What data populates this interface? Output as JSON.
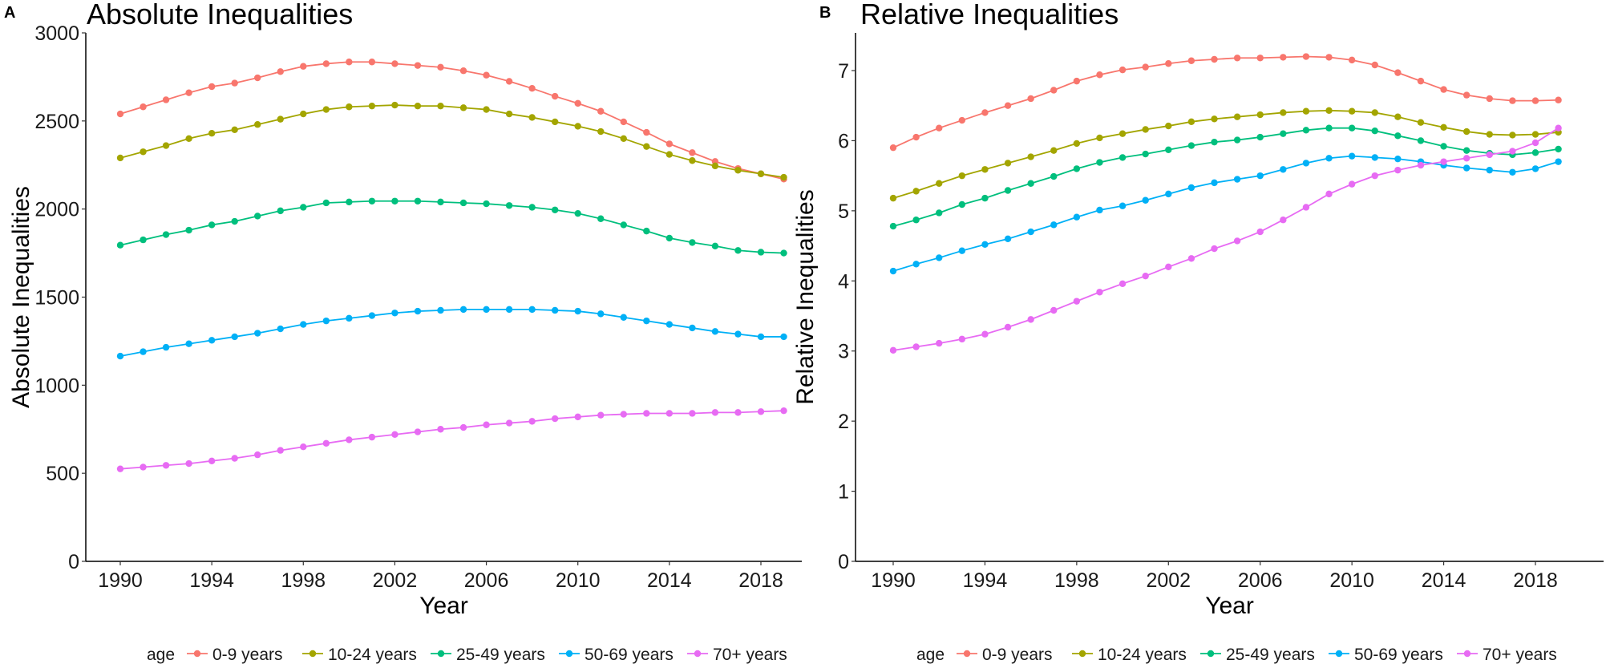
{
  "legend": {
    "title": "age",
    "labels": [
      "0-9 years",
      "10-24 years",
      "25-49 years",
      "50-69 years",
      "70+ years"
    ],
    "colors": [
      "#F8766D",
      "#A3A500",
      "#00BF7D",
      "#00B0F6",
      "#E76BF3"
    ],
    "position": "bottom"
  },
  "chart_data": [
    {
      "panel_label": "A",
      "type": "line",
      "title": "Absolute Inequalities",
      "xlabel": "Year",
      "ylabel": "Absolute Inequalities",
      "x": [
        1990,
        1991,
        1992,
        1993,
        1994,
        1995,
        1996,
        1997,
        1998,
        1999,
        2000,
        2001,
        2002,
        2003,
        2004,
        2005,
        2006,
        2007,
        2008,
        2009,
        2010,
        2011,
        2012,
        2013,
        2014,
        2015,
        2016,
        2017,
        2018,
        2019
      ],
      "xticks": [
        "1990",
        "1994",
        "1998",
        "2002",
        "2006",
        "2010",
        "2014",
        "2018"
      ],
      "yticks": [
        "0",
        "500",
        "1000",
        "1500",
        "2000",
        "2500",
        "3000"
      ],
      "ylim": [
        0,
        3000
      ],
      "grid": false,
      "series": [
        {
          "name": "0-9 years",
          "values": [
            2540,
            2580,
            2620,
            2660,
            2695,
            2715,
            2745,
            2780,
            2810,
            2825,
            2835,
            2835,
            2825,
            2815,
            2805,
            2785,
            2760,
            2725,
            2685,
            2640,
            2600,
            2555,
            2495,
            2435,
            2370,
            2320,
            2270,
            2230,
            2200,
            2170
          ]
        },
        {
          "name": "10-24 years",
          "values": [
            2290,
            2325,
            2360,
            2400,
            2430,
            2450,
            2480,
            2510,
            2540,
            2565,
            2580,
            2585,
            2590,
            2585,
            2585,
            2575,
            2565,
            2540,
            2520,
            2495,
            2470,
            2440,
            2400,
            2355,
            2310,
            2275,
            2245,
            2220,
            2200,
            2180
          ]
        },
        {
          "name": "25-49 years",
          "values": [
            1795,
            1825,
            1855,
            1880,
            1910,
            1930,
            1960,
            1990,
            2010,
            2035,
            2040,
            2045,
            2045,
            2045,
            2040,
            2035,
            2030,
            2020,
            2010,
            1995,
            1975,
            1945,
            1910,
            1875,
            1835,
            1810,
            1790,
            1765,
            1755,
            1750
          ]
        },
        {
          "name": "50-69 years",
          "values": [
            1165,
            1190,
            1215,
            1235,
            1255,
            1275,
            1295,
            1320,
            1345,
            1365,
            1380,
            1395,
            1410,
            1420,
            1425,
            1430,
            1430,
            1430,
            1430,
            1425,
            1420,
            1405,
            1385,
            1365,
            1345,
            1325,
            1305,
            1290,
            1275,
            1275
          ]
        },
        {
          "name": "70+ years",
          "values": [
            525,
            535,
            545,
            555,
            570,
            585,
            605,
            630,
            650,
            670,
            690,
            705,
            720,
            735,
            750,
            760,
            775,
            785,
            795,
            810,
            820,
            830,
            835,
            840,
            840,
            840,
            845,
            845,
            850,
            855
          ]
        }
      ]
    },
    {
      "panel_label": "B",
      "type": "line",
      "title": "Relative Inequalities",
      "xlabel": "Year",
      "ylabel": "Relative Inequalities",
      "x": [
        1990,
        1991,
        1992,
        1993,
        1994,
        1995,
        1996,
        1997,
        1998,
        1999,
        2000,
        2001,
        2002,
        2003,
        2004,
        2005,
        2006,
        2007,
        2008,
        2009,
        2010,
        2011,
        2012,
        2013,
        2014,
        2015,
        2016,
        2017,
        2018,
        2019
      ],
      "xticks": [
        "1990",
        "1994",
        "1998",
        "2002",
        "2006",
        "2010",
        "2014",
        "2018"
      ],
      "yticks": [
        "0",
        "1",
        "2",
        "3",
        "4",
        "5",
        "6",
        "7"
      ],
      "ylim": [
        0,
        7.5
      ],
      "grid": false,
      "series": [
        {
          "name": "0-9 years",
          "values": [
            5.9,
            6.05,
            6.18,
            6.29,
            6.4,
            6.5,
            6.6,
            6.72,
            6.85,
            6.94,
            7.01,
            7.05,
            7.1,
            7.14,
            7.16,
            7.18,
            7.18,
            7.19,
            7.2,
            7.19,
            7.15,
            7.08,
            6.97,
            6.85,
            6.73,
            6.65,
            6.6,
            6.57,
            6.57,
            6.58
          ]
        },
        {
          "name": "10-24 years",
          "values": [
            5.18,
            5.28,
            5.39,
            5.5,
            5.59,
            5.68,
            5.77,
            5.86,
            5.96,
            6.04,
            6.1,
            6.16,
            6.21,
            6.27,
            6.31,
            6.34,
            6.37,
            6.4,
            6.42,
            6.43,
            6.42,
            6.4,
            6.34,
            6.26,
            6.19,
            6.13,
            6.09,
            6.08,
            6.09,
            6.12
          ]
        },
        {
          "name": "25-49 years",
          "values": [
            4.78,
            4.87,
            4.97,
            5.09,
            5.18,
            5.29,
            5.39,
            5.49,
            5.6,
            5.69,
            5.76,
            5.81,
            5.87,
            5.93,
            5.98,
            6.01,
            6.05,
            6.1,
            6.15,
            6.18,
            6.18,
            6.14,
            6.07,
            6.0,
            5.92,
            5.86,
            5.82,
            5.8,
            5.83,
            5.88
          ]
        },
        {
          "name": "50-69 years",
          "values": [
            4.14,
            4.24,
            4.33,
            4.43,
            4.52,
            4.6,
            4.7,
            4.8,
            4.91,
            5.01,
            5.07,
            5.15,
            5.24,
            5.33,
            5.4,
            5.45,
            5.5,
            5.59,
            5.68,
            5.75,
            5.78,
            5.76,
            5.74,
            5.7,
            5.65,
            5.61,
            5.58,
            5.55,
            5.6,
            5.7
          ]
        },
        {
          "name": "70+ years",
          "values": [
            3.01,
            3.06,
            3.11,
            3.17,
            3.24,
            3.34,
            3.45,
            3.58,
            3.71,
            3.84,
            3.96,
            4.07,
            4.2,
            4.32,
            4.46,
            4.57,
            4.7,
            4.87,
            5.05,
            5.24,
            5.38,
            5.5,
            5.58,
            5.65,
            5.7,
            5.75,
            5.8,
            5.85,
            5.97,
            6.18
          ]
        }
      ]
    }
  ]
}
